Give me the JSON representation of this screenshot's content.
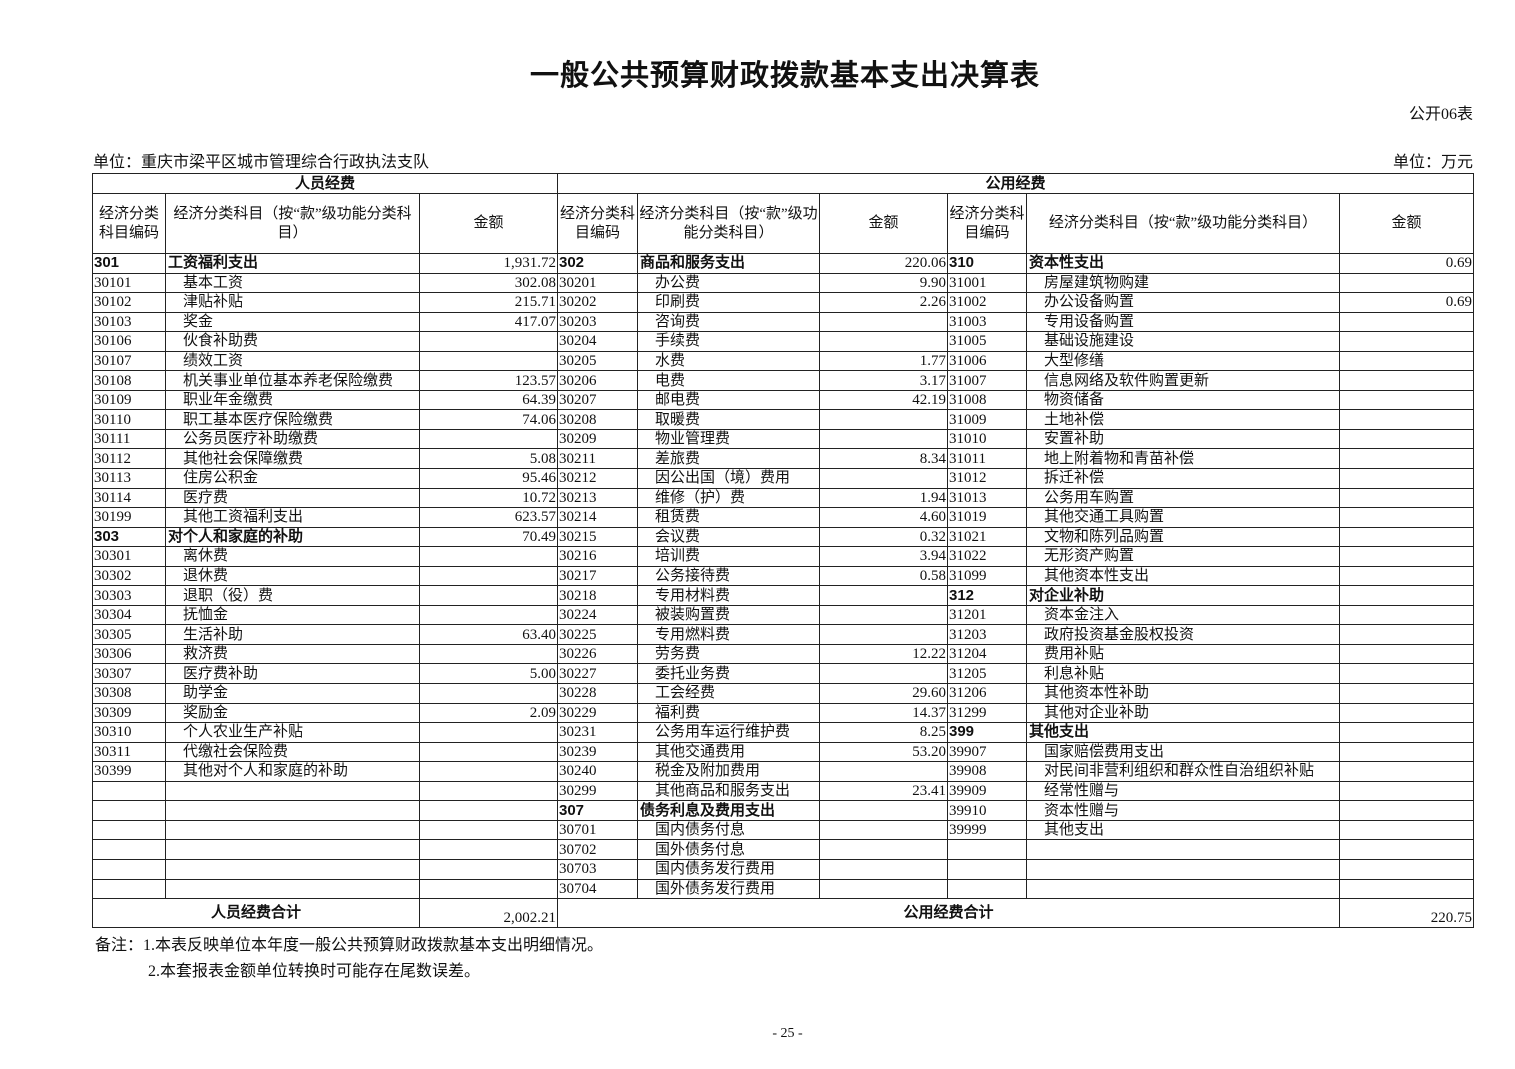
{
  "title": "一般公共预算财政拨款基本支出决算表",
  "table_no": "公开06表",
  "unit_org": "单位：重庆市梁平区城市管理综合行政执法支队",
  "unit_money": "单位：万元",
  "groups": {
    "personnel": "人员经费",
    "public": "公用经费"
  },
  "headers": {
    "code": "经济分类科目编码",
    "name": "经济分类科目（按“款”级功能分类科目）",
    "amount": "金额"
  },
  "rows": [
    [
      [
        "301",
        "工资福利支出",
        "1,931.72",
        1
      ],
      [
        "302",
        "商品和服务支出",
        "220.06",
        1
      ],
      [
        "310",
        "资本性支出",
        "0.69",
        1
      ]
    ],
    [
      [
        "30101",
        "基本工资",
        "302.08"
      ],
      [
        "30201",
        "办公费",
        "9.90"
      ],
      [
        "31001",
        "房屋建筑物购建",
        ""
      ]
    ],
    [
      [
        "30102",
        "津贴补贴",
        "215.71"
      ],
      [
        "30202",
        "印刷费",
        "2.26"
      ],
      [
        "31002",
        "办公设备购置",
        "0.69"
      ]
    ],
    [
      [
        "30103",
        "奖金",
        "417.07"
      ],
      [
        "30203",
        "咨询费",
        ""
      ],
      [
        "31003",
        "专用设备购置",
        ""
      ]
    ],
    [
      [
        "30106",
        "伙食补助费",
        ""
      ],
      [
        "30204",
        "手续费",
        ""
      ],
      [
        "31005",
        "基础设施建设",
        ""
      ]
    ],
    [
      [
        "30107",
        "绩效工资",
        ""
      ],
      [
        "30205",
        "水费",
        "1.77"
      ],
      [
        "31006",
        "大型修缮",
        ""
      ]
    ],
    [
      [
        "30108",
        "机关事业单位基本养老保险缴费",
        "123.57"
      ],
      [
        "30206",
        "电费",
        "3.17"
      ],
      [
        "31007",
        "信息网络及软件购置更新",
        ""
      ]
    ],
    [
      [
        "30109",
        "职业年金缴费",
        "64.39"
      ],
      [
        "30207",
        "邮电费",
        "42.19"
      ],
      [
        "31008",
        "物资储备",
        ""
      ]
    ],
    [
      [
        "30110",
        "职工基本医疗保险缴费",
        "74.06"
      ],
      [
        "30208",
        "取暖费",
        ""
      ],
      [
        "31009",
        "土地补偿",
        ""
      ]
    ],
    [
      [
        "30111",
        "公务员医疗补助缴费",
        ""
      ],
      [
        "30209",
        "物业管理费",
        ""
      ],
      [
        "31010",
        "安置补助",
        ""
      ]
    ],
    [
      [
        "30112",
        "其他社会保障缴费",
        "5.08"
      ],
      [
        "30211",
        "差旅费",
        "8.34"
      ],
      [
        "31011",
        "地上附着物和青苗补偿",
        ""
      ]
    ],
    [
      [
        "30113",
        "住房公积金",
        "95.46"
      ],
      [
        "30212",
        "因公出国（境）费用",
        ""
      ],
      [
        "31012",
        "拆迁补偿",
        ""
      ]
    ],
    [
      [
        "30114",
        "医疗费",
        "10.72"
      ],
      [
        "30213",
        "维修（护）费",
        "1.94"
      ],
      [
        "31013",
        "公务用车购置",
        ""
      ]
    ],
    [
      [
        "30199",
        "其他工资福利支出",
        "623.57"
      ],
      [
        "30214",
        "租赁费",
        "4.60"
      ],
      [
        "31019",
        "其他交通工具购置",
        ""
      ]
    ],
    [
      [
        "303",
        "对个人和家庭的补助",
        "70.49",
        1
      ],
      [
        "30215",
        "会议费",
        "0.32"
      ],
      [
        "31021",
        "文物和陈列品购置",
        ""
      ]
    ],
    [
      [
        "30301",
        "离休费",
        ""
      ],
      [
        "30216",
        "培训费",
        "3.94"
      ],
      [
        "31022",
        "无形资产购置",
        ""
      ]
    ],
    [
      [
        "30302",
        "退休费",
        ""
      ],
      [
        "30217",
        "公务接待费",
        "0.58"
      ],
      [
        "31099",
        "其他资本性支出",
        ""
      ]
    ],
    [
      [
        "30303",
        "退职（役）费",
        ""
      ],
      [
        "30218",
        "专用材料费",
        ""
      ],
      [
        "312",
        "对企业补助",
        "",
        1
      ]
    ],
    [
      [
        "30304",
        "抚恤金",
        ""
      ],
      [
        "30224",
        "被装购置费",
        ""
      ],
      [
        "31201",
        "资本金注入",
        ""
      ]
    ],
    [
      [
        "30305",
        "生活补助",
        "63.40"
      ],
      [
        "30225",
        "专用燃料费",
        ""
      ],
      [
        "31203",
        "政府投资基金股权投资",
        ""
      ]
    ],
    [
      [
        "30306",
        "救济费",
        ""
      ],
      [
        "30226",
        "劳务费",
        "12.22"
      ],
      [
        "31204",
        "费用补贴",
        ""
      ]
    ],
    [
      [
        "30307",
        "医疗费补助",
        "5.00"
      ],
      [
        "30227",
        "委托业务费",
        ""
      ],
      [
        "31205",
        "利息补贴",
        ""
      ]
    ],
    [
      [
        "30308",
        "助学金",
        ""
      ],
      [
        "30228",
        "工会经费",
        "29.60"
      ],
      [
        "31206",
        "其他资本性补助",
        ""
      ]
    ],
    [
      [
        "30309",
        "奖励金",
        "2.09"
      ],
      [
        "30229",
        "福利费",
        "14.37"
      ],
      [
        "31299",
        "其他对企业补助",
        ""
      ]
    ],
    [
      [
        "30310",
        "个人农业生产补贴",
        ""
      ],
      [
        "30231",
        "公务用车运行维护费",
        "8.25"
      ],
      [
        "399",
        "其他支出",
        "",
        1
      ]
    ],
    [
      [
        "30311",
        "代缴社会保险费",
        ""
      ],
      [
        "30239",
        "其他交通费用",
        "53.20"
      ],
      [
        "39907",
        "国家赔偿费用支出",
        ""
      ]
    ],
    [
      [
        "30399",
        "其他对个人和家庭的补助",
        ""
      ],
      [
        "30240",
        "税金及附加费用",
        ""
      ],
      [
        "39908",
        "对民间非营利组织和群众性自治组织补贴",
        ""
      ]
    ],
    [
      [
        "",
        "",
        ""
      ],
      [
        "30299",
        "其他商品和服务支出",
        "23.41"
      ],
      [
        "39909",
        "经常性赠与",
        ""
      ]
    ],
    [
      [
        "",
        "",
        ""
      ],
      [
        "307",
        "债务利息及费用支出",
        "",
        1
      ],
      [
        "39910",
        "资本性赠与",
        ""
      ]
    ],
    [
      [
        "",
        "",
        ""
      ],
      [
        "30701",
        "国内债务付息",
        ""
      ],
      [
        "39999",
        "其他支出",
        ""
      ]
    ],
    [
      [
        "",
        "",
        ""
      ],
      [
        "30702",
        "国外债务付息",
        ""
      ],
      [
        "",
        "",
        ""
      ]
    ],
    [
      [
        "",
        "",
        ""
      ],
      [
        "30703",
        "国内债务发行费用",
        ""
      ],
      [
        "",
        "",
        ""
      ]
    ],
    [
      [
        "",
        "",
        ""
      ],
      [
        "30704",
        "国外债务发行费用",
        ""
      ],
      [
        "",
        "",
        ""
      ]
    ]
  ],
  "totals": {
    "personnel_label": "人员经费合计",
    "personnel_amount": "2,002.21",
    "public_label": "公用经费合计",
    "public_amount": "220.75"
  },
  "notes": [
    "备注：1.本表反映单位本年度一般公共预算财政拨款基本支出明细情况。",
    "2.本套报表金额单位转换时可能存在尾数误差。"
  ],
  "page_number": "- 25 -"
}
